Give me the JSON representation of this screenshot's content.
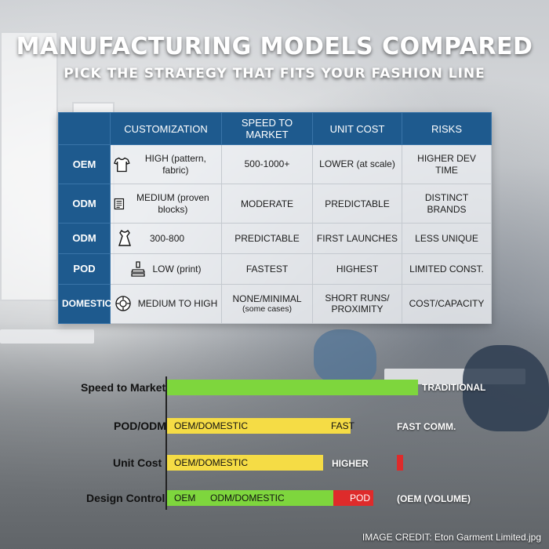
{
  "title": "MANUFACTURING MODELS COMPARED",
  "subtitle": "PICK THE STRATEGY THAT FITS YOUR FASHION LINE",
  "table": {
    "headers": [
      "",
      "CUSTOMIZATION",
      "SPEED TO MARKET",
      "UNIT COST",
      "RISKS"
    ],
    "rows": [
      {
        "model": "OEM",
        "icon": "tshirt-icon",
        "cells": [
          "HIGH (pattern, fabric)",
          "500-1000+",
          "LOWER (at scale)",
          "HIGHER DEV TIME"
        ]
      },
      {
        "model": "ODM",
        "icon": "document-icon",
        "cells": [
          "MEDIUM (proven blocks)",
          "MODERATE",
          "PREDICTABLE",
          "DISTINCT BRANDS"
        ]
      },
      {
        "model": "ODM",
        "icon": "dress-icon",
        "cells": [
          "300-800",
          "PREDICTABLE",
          "FIRST LAUNCHES",
          "LESS UNIQUE"
        ]
      },
      {
        "model": "POD",
        "icon": "print-stack-icon",
        "cells": [
          "LOW (print)",
          "FASTEST",
          "HIGHEST",
          "LIMITED CONST."
        ]
      },
      {
        "model": "DOMESTIC",
        "icon": "location-icon",
        "cells": [
          "MEDIUM TO HIGH",
          "NONE/MINIMAL",
          "SHORT RUNS/",
          "COST/CAPACITY"
        ],
        "subs": [
          "",
          "(some cases)",
          "PROXIMITY",
          ""
        ]
      }
    ]
  },
  "bars": {
    "rows": [
      {
        "label": "Speed to Market",
        "side": "TRADITIONAL"
      },
      {
        "label": "POD/ODM",
        "segments": [
          {
            "text": "OEM/DOMESTIC"
          },
          {
            "text": "FAST"
          }
        ],
        "side": "FAST COMM."
      },
      {
        "label": "Unit Cost",
        "segments": [
          {
            "text": "OEM/DOMESTIC"
          }
        ],
        "side": "HIGHER"
      },
      {
        "label": "Design Control",
        "segments": [
          {
            "text": "OEM"
          },
          {
            "text": "ODM/DOMESTIC"
          },
          {
            "text": "POD"
          }
        ],
        "side": "(OEM (VOLUME)"
      }
    ],
    "values": {
      "speed_green": 0.82,
      "pododm_yellow": 0.6,
      "unitcost_yellow": 0.51,
      "unitcost_red": 0.02,
      "design_green": 0.6,
      "design_red": 0.13
    }
  },
  "colors": {
    "header_blue": "#1e5a8e",
    "green": "#7ed63d",
    "yellow": "#f5dc45",
    "red": "#de2b2b"
  },
  "credit": "IMAGE CREDIT: Eton Garment Limited.jpg"
}
